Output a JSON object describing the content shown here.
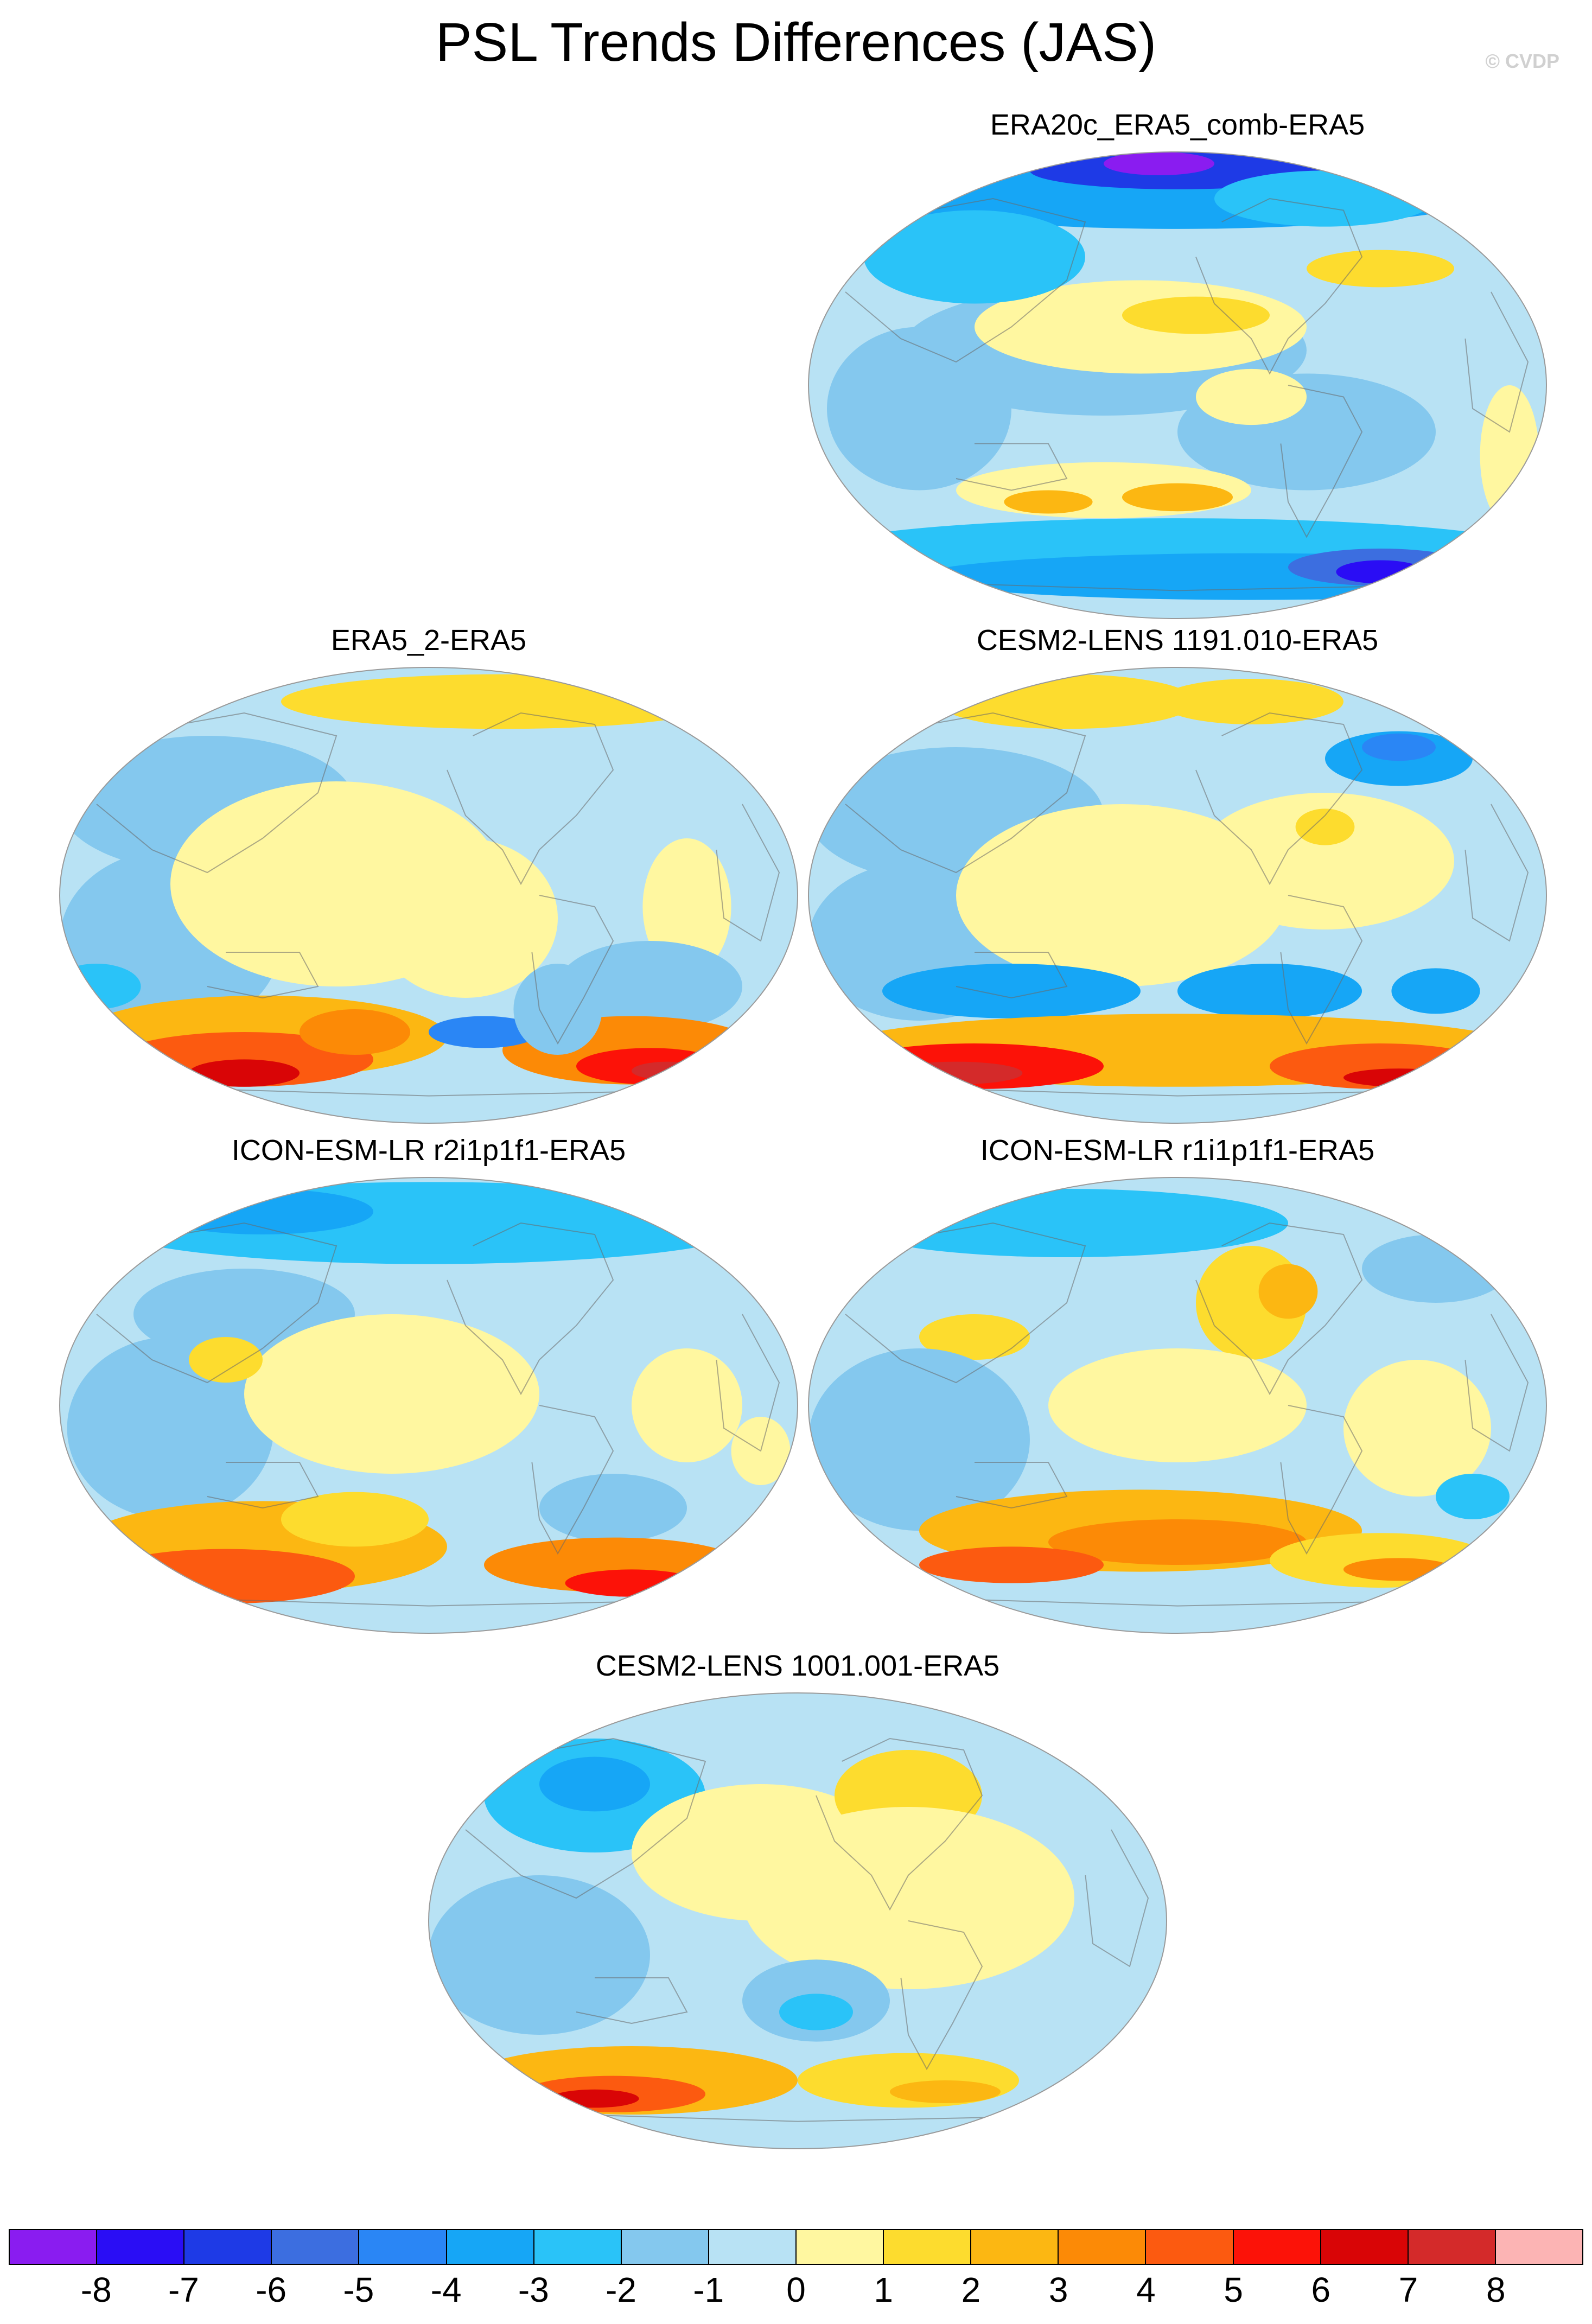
{
  "header": {
    "title": "PSL Trends Differences (JAS)",
    "copyright": "© CVDP"
  },
  "panels": [
    {
      "title": "ERA20c_ERA5_comb-ERA5",
      "pattern": "era20c"
    },
    {
      "title": "ERA5_2-ERA5",
      "pattern": "era5_2"
    },
    {
      "title": "CESM2-LENS 1191.010-ERA5",
      "pattern": "cesm1191"
    },
    {
      "title": "ICON-ESM-LR r2i1p1f1-ERA5",
      "pattern": "icon_r2"
    },
    {
      "title": "ICON-ESM-LR r1i1p1f1-ERA5",
      "pattern": "icon_r1"
    },
    {
      "title": "CESM2-LENS 1001.001-ERA5",
      "pattern": "cesm1001"
    }
  ],
  "colorbar": {
    "labels": [
      "-8",
      "-7",
      "-6",
      "-5",
      "-4",
      "-3",
      "-2",
      "-1",
      "0",
      "1",
      "2",
      "3",
      "4",
      "5",
      "6",
      "7",
      "8"
    ],
    "colors": [
      "#8a1cf0",
      "#2a0df5",
      "#1e3ae6",
      "#3c6ee0",
      "#2a86f5",
      "#16a6f6",
      "#2ac3f8",
      "#84c8ee",
      "#b8e2f4",
      "#fff7a0",
      "#fddc2e",
      "#fcb712",
      "#fc8a06",
      "#fc5a10",
      "#fc1208",
      "#d90506",
      "#d42a2a",
      "#fcb4b4"
    ]
  }
}
